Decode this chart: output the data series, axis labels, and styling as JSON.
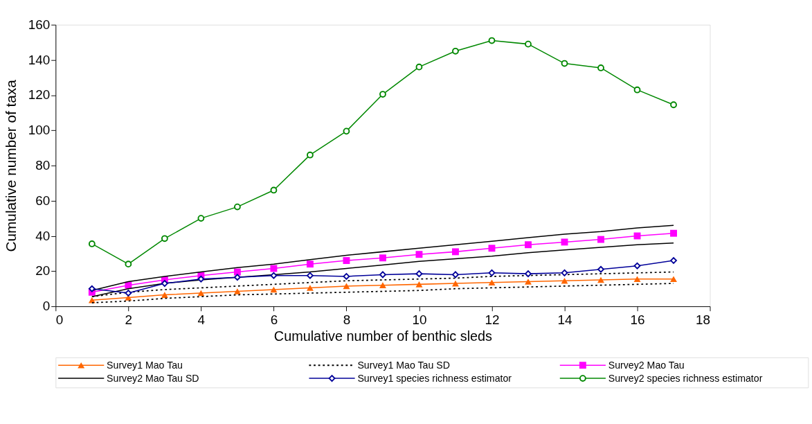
{
  "chart_data": {
    "type": "line",
    "xlabel": "Cumulative number of benthic sleds",
    "ylabel": "Cumulative number of taxa",
    "x": [
      1,
      2,
      3,
      4,
      5,
      6,
      7,
      8,
      9,
      10,
      11,
      12,
      13,
      14,
      15,
      16,
      17
    ],
    "xlim": [
      0,
      18
    ],
    "xticks": [
      0,
      2,
      4,
      6,
      8,
      10,
      12,
      14,
      16,
      18
    ],
    "ylim": [
      0,
      160
    ],
    "yticks": [
      0,
      20,
      40,
      60,
      80,
      100,
      120,
      140,
      160
    ],
    "grid": false,
    "legend": "bottom",
    "series": [
      {
        "name": "Survey1 Mao Tau",
        "color": "#ff6600",
        "marker": "triangle",
        "line_style": "solid",
        "values": [
          3.5,
          5,
          6.5,
          7.5,
          8.5,
          9.5,
          10.5,
          11.5,
          12,
          12.5,
          13,
          13.5,
          14,
          14.5,
          15,
          15.5,
          15.5
        ]
      },
      {
        "name": "Survey1 Mao Tau SD",
        "color": "#000000",
        "marker": "none",
        "line_style": "dotted",
        "values": [
          5.5,
          8,
          9.5,
          10.5,
          11.5,
          12.5,
          13.5,
          14.5,
          15,
          15.5,
          16,
          17,
          17.5,
          18,
          18.5,
          19,
          19.5
        ]
      },
      {
        "color": "#000000",
        "marker": "none",
        "line_style": "dotted",
        "values": [
          2,
          3,
          4.5,
          5.5,
          6.5,
          7,
          7.5,
          8,
          8.5,
          9,
          10,
          10.5,
          11,
          11.5,
          12,
          12.5,
          13
        ]
      },
      {
        "name": "Survey2 Mao Tau",
        "color": "#ff00ff",
        "marker": "square",
        "line_style": "solid",
        "values": [
          8,
          12,
          15,
          17.5,
          19.5,
          21.5,
          24,
          26,
          27.5,
          29.5,
          31,
          33,
          35,
          36.5,
          38,
          40,
          41.5
        ]
      },
      {
        "name": "Survey2 Mao Tau SD",
        "color": "#000000",
        "marker": "none",
        "line_style": "solid",
        "values": [
          9,
          14,
          17,
          19.5,
          22,
          24,
          26.5,
          29,
          31,
          33,
          35,
          37,
          39,
          41,
          42.5,
          44.5,
          46
        ]
      },
      {
        "color": "#000000",
        "marker": "none",
        "line_style": "solid",
        "values": [
          5.5,
          10,
          13,
          15,
          16.5,
          18,
          19.5,
          21.5,
          23.5,
          25.5,
          27,
          28.5,
          30.5,
          32,
          33.5,
          35,
          36
        ]
      },
      {
        "name": "Survey1 species richness estimator",
        "color": "#000099",
        "marker": "diamond",
        "line_style": "solid",
        "values": [
          10,
          7.5,
          13,
          15.5,
          16.5,
          17.5,
          17.5,
          17,
          18,
          18.5,
          18,
          19,
          18.5,
          19,
          21,
          23,
          26
        ]
      },
      {
        "name": "Survey2 species richness estimator",
        "color": "#008800",
        "marker": "circle",
        "line_style": "solid",
        "values": [
          35.5,
          24,
          38.5,
          50,
          56.5,
          66,
          86,
          99.5,
          120.5,
          136,
          145,
          151,
          149,
          138,
          135.5,
          123,
          114.5
        ]
      }
    ]
  }
}
